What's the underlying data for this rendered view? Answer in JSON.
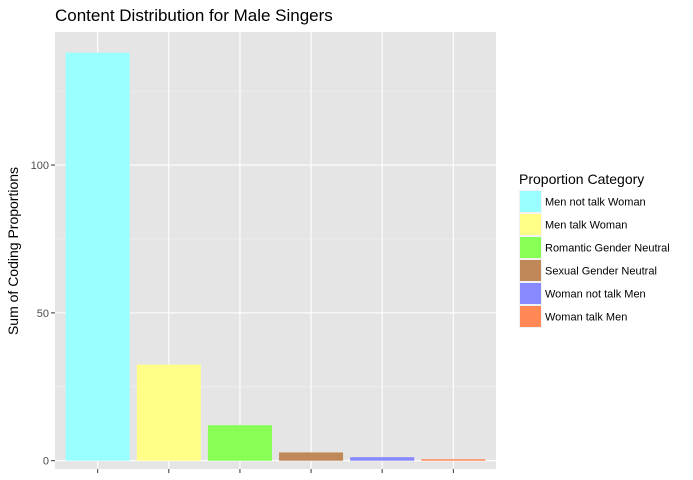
{
  "chart_data": {
    "type": "bar",
    "title": "Content Distribution for Male Singers",
    "xlabel": "",
    "ylabel": "Sum of Coding Proportions",
    "categories": [
      "Men not talk Woman",
      "Men talk Woman",
      "Romantic Gender Neutral",
      "Sexual Gender Neutral",
      "Woman not talk Men",
      "Woman talk Men"
    ],
    "values": [
      138,
      32.5,
      12,
      2.8,
      1.2,
      0.5
    ],
    "colors": [
      "#99FFFF",
      "#FFFF88",
      "#88FF55",
      "#C08858",
      "#8888FF",
      "#FF8855"
    ],
    "ylim": [
      -2.8,
      145
    ],
    "yticks": [
      0,
      50,
      100
    ],
    "ytick_labels": [
      "0",
      "50",
      "100"
    ],
    "legend": {
      "title": "Proportion Category",
      "position": "right"
    },
    "grid": true,
    "background": "#E5E5E5"
  }
}
